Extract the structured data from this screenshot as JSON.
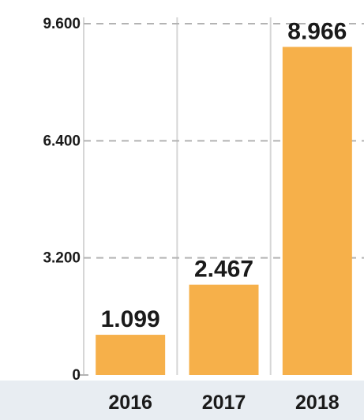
{
  "chart_data": {
    "type": "bar",
    "title": "",
    "xlabel": "",
    "ylabel": "",
    "categories": [
      "2016",
      "2017",
      "2018"
    ],
    "values": [
      1099,
      2467,
      8966
    ],
    "value_labels": [
      "1.099",
      "2.467",
      "8.966"
    ],
    "ylim": [
      0,
      9600
    ],
    "yticks": [
      0,
      3200,
      6400,
      9600
    ],
    "ytick_labels": [
      "0",
      "3.200",
      "6.400",
      "9.600"
    ],
    "grid": true,
    "legend": "none",
    "colors": {
      "bar": "#F6B04A",
      "gridline": "#b3b3b3",
      "separator": "#d6d6d6",
      "axis_band": "#e8edf2",
      "text": "#1a1a1a"
    }
  }
}
